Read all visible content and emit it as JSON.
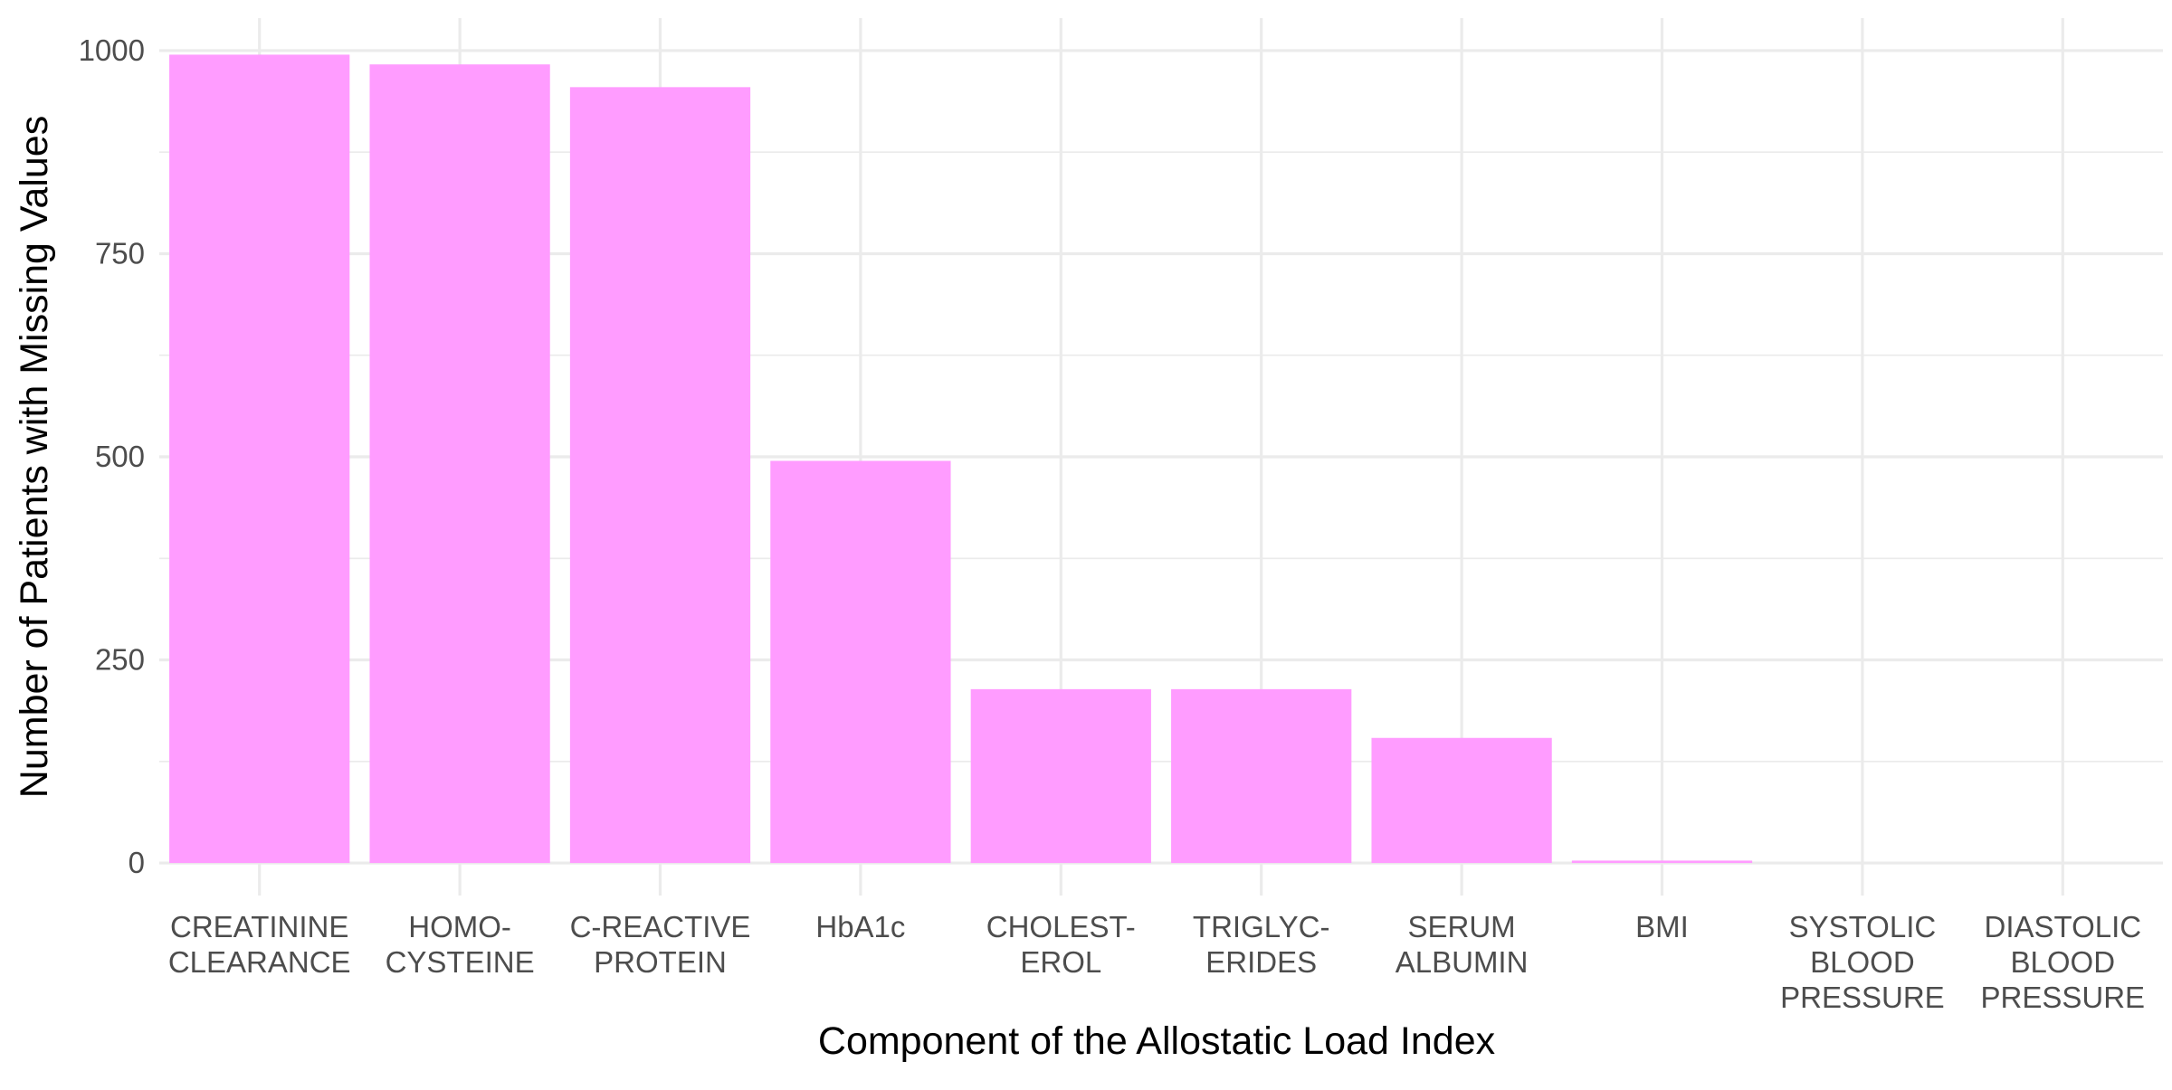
{
  "chart_data": {
    "type": "bar",
    "title": "",
    "xlabel": "Component of the Allostatic Load Index",
    "ylabel": "Number of Patients with Missing Values",
    "categories": [
      [
        "CREATININE",
        "CLEARANCE"
      ],
      [
        "HOMO-",
        "CYSTEINE"
      ],
      [
        "C-REACTIVE",
        "PROTEIN"
      ],
      [
        "HbA1c"
      ],
      [
        "CHOLEST-",
        "EROL"
      ],
      [
        "TRIGLYC-",
        "ERIDES"
      ],
      [
        "SERUM",
        "ALBUMIN"
      ],
      [
        "BMI"
      ],
      [
        "SYSTOLIC",
        "BLOOD",
        "PRESSURE"
      ],
      [
        "DIASTOLIC",
        "BLOOD",
        "PRESSURE"
      ]
    ],
    "values": [
      995,
      983,
      955,
      495,
      214,
      214,
      154,
      3,
      0,
      0
    ],
    "ylim": [
      -40,
      1040
    ],
    "yticks": [
      0,
      250,
      500,
      750,
      1000
    ],
    "ytick_labels": [
      "0",
      "250",
      "500",
      "750",
      "1000"
    ],
    "grid": true,
    "bar_color": "#FF9CFF",
    "grid_color": "#EBEBEB",
    "legend": "none"
  }
}
